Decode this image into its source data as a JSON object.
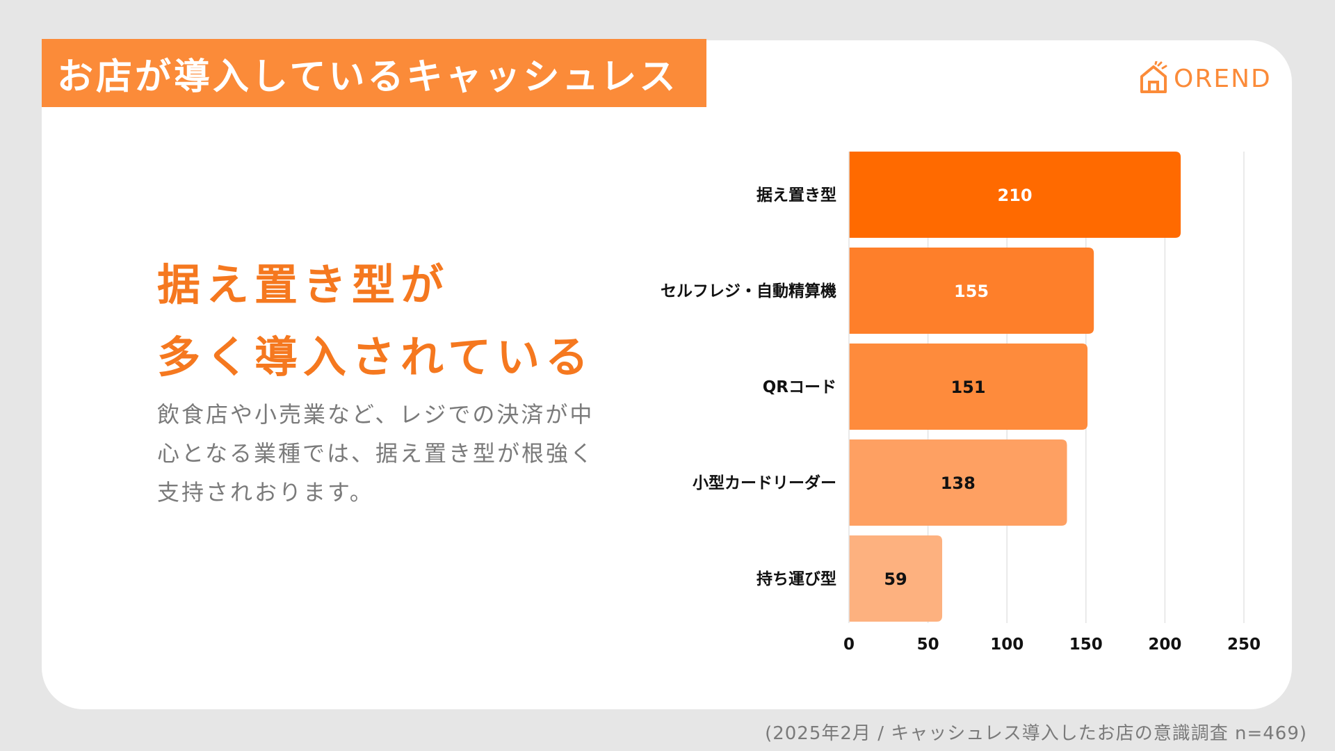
{
  "header": {
    "title": "お店が導入しているキャッシュレス"
  },
  "logo": {
    "text": "OREND",
    "color": "#fb8b39",
    "icon": "house-icon"
  },
  "main": {
    "headline_line1": "据え置き型が",
    "headline_line2": "多く導入されている",
    "body_line1": "飲食店や小売業など、レジでの決済が中",
    "body_line2": "心となる業種では、据え置き型が根強く",
    "body_line3": "支持されおります。"
  },
  "footer": {
    "source": "(2025年2月 / キャッシュレス導入したお店の意識調査 n=469)"
  },
  "colors": {
    "accent": "#fb8b39",
    "headline": "#f5781f",
    "bars": [
      "#ff6a00",
      "#fe7f2a",
      "#fe8b3c",
      "#fea062",
      "#fdb17f"
    ],
    "value_text": [
      "#ffffff",
      "#ffffff",
      "#111111",
      "#111111",
      "#111111"
    ]
  },
  "chart_data": {
    "type": "bar",
    "orientation": "horizontal",
    "categories": [
      "据え置き型",
      "セルフレジ・自動精算機",
      "QRコード",
      "小型カードリーダー",
      "持ち運び型"
    ],
    "values": [
      210,
      155,
      151,
      138,
      59
    ],
    "xlim": [
      0,
      250
    ],
    "xticks": [
      0,
      50,
      100,
      150,
      200,
      250
    ],
    "grid": true
  }
}
